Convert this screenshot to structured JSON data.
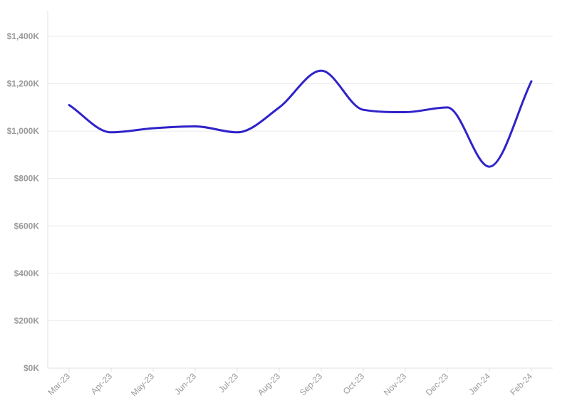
{
  "chart_data": {
    "type": "line",
    "title": "",
    "xlabel": "",
    "ylabel": "",
    "categories": [
      "Mar-23",
      "Apr-23",
      "May-23",
      "Jun-23",
      "Jul-23",
      "Aug-23",
      "Sep-23",
      "Oct-23",
      "Nov-23",
      "Dec-23",
      "Jan-24",
      "Feb-24"
    ],
    "series": [
      {
        "values": [
          1110,
          995,
          1012,
          1020,
          995,
          1100,
          1255,
          1090,
          1080,
          1100,
          850,
          1210
        ]
      }
    ],
    "y_ticks": [
      0,
      200,
      400,
      600,
      800,
      1000,
      1200,
      1400
    ],
    "y_tick_labels": [
      "$0K",
      "$200K",
      "$400K",
      "$600K",
      "$800K",
      "$1,000K",
      "$1,200K",
      "$1,400K"
    ],
    "ylim": [
      0,
      1400
    ],
    "grid": true,
    "legend": "none",
    "colors": {
      "line": "#2f23c9",
      "grid": "#ebebeb",
      "axis": "#e2e2e2",
      "tick_text": "#9a9a9a"
    }
  }
}
